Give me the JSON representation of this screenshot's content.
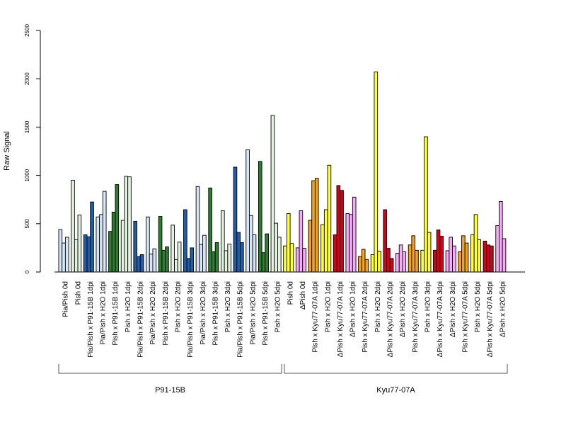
{
  "chart_data": {
    "type": "bar",
    "ylabel": "Raw Signal",
    "ylim": [
      0,
      2500
    ],
    "yticks": [
      "0",
      "500",
      "1000",
      "1500",
      "2000",
      "2500"
    ],
    "grid": false,
    "groups": [
      {
        "label": "P91-15B",
        "first": 0,
        "last": 14
      },
      {
        "label": "Kyu77-07A",
        "first": 15,
        "last": 29
      }
    ],
    "categories": [
      {
        "label": "Pia/Pish 0d",
        "color": "#d6e6f6",
        "values": [
          440,
          300,
          360
        ]
      },
      {
        "label": "Pish 0d",
        "color": "#e3f1df",
        "values": [
          950,
          335,
          590
        ]
      },
      {
        "label": "Pia/Pish x P91-15B 1dpi",
        "color": "#1f5fa8",
        "values": [
          385,
          365,
          725
        ]
      },
      {
        "label": "Pia/Pish x H2O 1dpi",
        "color": "#d6e6f6",
        "values": [
          570,
          595,
          835
        ]
      },
      {
        "label": "Pish x P91-15B 1dpi",
        "color": "#2e7d32",
        "values": [
          420,
          620,
          905
        ]
      },
      {
        "label": "Pish x H2O 1dpi",
        "color": "#e3f1df",
        "values": [
          535,
          990,
          985
        ]
      },
      {
        "label": "Pia/Pish x P91-15B 2dpi",
        "color": "#1f5fa8",
        "values": [
          525,
          160,
          180
        ]
      },
      {
        "label": "Pia/Pish x H2O 2dpi",
        "color": "#d6e6f6",
        "values": [
          570,
          185,
          240
        ]
      },
      {
        "label": "Pish x P91-15B 2dpi",
        "color": "#2e7d32",
        "values": [
          575,
          225,
          260
        ]
      },
      {
        "label": "Pish x H2O 2dpi",
        "color": "#e3f1df",
        "values": [
          485,
          130,
          310
        ]
      },
      {
        "label": "Pia/Pish x P91-15B 3dpi",
        "color": "#1f5fa8",
        "values": [
          645,
          140,
          250
        ]
      },
      {
        "label": "Pia/Pish x H2O 3dpi",
        "color": "#d6e6f6",
        "values": [
          885,
          285,
          380
        ]
      },
      {
        "label": "Pish x P91-15B 3dpi",
        "color": "#2e7d32",
        "values": [
          870,
          210,
          305
        ]
      },
      {
        "label": "Pish x H2O 3dpi",
        "color": "#e3f1df",
        "values": [
          635,
          220,
          290
        ]
      },
      {
        "label": "Pia/Pish x P91-15B 5dpi",
        "color": "#1f5fa8",
        "values": [
          1085,
          410,
          305
        ]
      },
      {
        "label": "Pia/Pish x H2O 5dpi",
        "color": "#d6e6f6",
        "values": [
          1265,
          585,
          385
        ]
      },
      {
        "label": "Pish x P91-15B 5dpi",
        "color": "#2e7d32",
        "values": [
          1145,
          200,
          395
        ]
      },
      {
        "label": "Pish x H2O 5dpi",
        "color": "#e3f1df",
        "values": [
          1620,
          505,
          360
        ]
      },
      {
        "label": "Pish 0d",
        "color": "#ffff33",
        "values": [
          270,
          605,
          295
        ]
      },
      {
        "label": "ΔPish 0d",
        "color": "#f7aaf7",
        "values": [
          250,
          635,
          245
        ]
      },
      {
        "label": "Pish x Kyu77-07A 1dpi",
        "color": "#f5a21b",
        "values": [
          535,
          945,
          970
        ]
      },
      {
        "label": "Pish x H2O 1dpi",
        "color": "#ffff33",
        "values": [
          490,
          645,
          1105
        ]
      },
      {
        "label": "ΔPish x Kyu77-07A 1dpi",
        "color": "#d7001b",
        "values": [
          385,
          895,
          845
        ]
      },
      {
        "label": "ΔPish x H2O 1dpi",
        "color": "#f7aaf7",
        "values": [
          605,
          595,
          775
        ]
      },
      {
        "label": "Pish x Kyu77-07A 2dpi",
        "color": "#f5a21b",
        "values": [
          160,
          235,
          130
        ]
      },
      {
        "label": "Pish x H2O 2dpi",
        "color": "#ffff33",
        "values": [
          180,
          2070,
          215
        ]
      },
      {
        "label": "ΔPish x Kyu77-07A 2dpi",
        "color": "#d7001b",
        "values": [
          645,
          245,
          140
        ]
      },
      {
        "label": "ΔPish x H2O 2dpi",
        "color": "#f7aaf7",
        "values": [
          195,
          280,
          210
        ]
      },
      {
        "label": "Pish x Kyu77-07A 3dpi",
        "color": "#f5a21b",
        "values": [
          280,
          375,
          225
        ]
      },
      {
        "label": "Pish x H2O 3dpi",
        "color": "#ffff33",
        "values": [
          225,
          1400,
          410
        ]
      },
      {
        "label": "ΔPish x Kyu77-07A 3dpi",
        "color": "#d7001b",
        "values": [
          225,
          435,
          370
        ]
      },
      {
        "label": "ΔPish x H2O 3dpi",
        "color": "#f7aaf7",
        "values": [
          220,
          360,
          270
        ]
      },
      {
        "label": "Pish x Kyu77-07A 5dpi",
        "color": "#f5a21b",
        "values": [
          210,
          375,
          300
        ]
      },
      {
        "label": "Pish x H2O 5dpi",
        "color": "#ffff33",
        "values": [
          385,
          595,
          335
        ]
      },
      {
        "label": "ΔPish x Kyu77-07A 5dpi",
        "color": "#d7001b",
        "values": [
          320,
          280,
          270
        ]
      },
      {
        "label": "ΔPish x H2O 5dpi",
        "color": "#f7aaf7",
        "values": [
          480,
          730,
          345
        ]
      }
    ],
    "labeled_categories": [
      "Pia/Pish 0d",
      "Pish 0d",
      "Pia/Pish x P91-15B 1dpi",
      "Pia/Pish x H2O 1dpi",
      "Pish x P91-15B 1dpi",
      "Pish x H2O 1dpi",
      "Pia/Pish x P91-15B 2dpi",
      "Pia/Pish x H2O 2dpi",
      "Pish x P91-15B 2dpi",
      "Pish x H2O 2dpi",
      "Pia/Pish x P91-15B 3dpi",
      "Pia/Pish x H2O 3dpi",
      "Pish x P91-15B 3dpi",
      "Pish x H2O 3dpi",
      "Pia/Pish x P91-15B 5dpi",
      "Pia/Pish x H2O 5dpi",
      "Pish x P91-15B 5dpi",
      "Pish x H2O 5dpi",
      "Pish 0d",
      "ΔPish 0d",
      "Pish x Kyu77-07A 1dpi",
      "Pish x H2O 1dpi",
      "ΔPish x Kyu77-07A 1dpi",
      "ΔPish x H2O 1dpi",
      "Pish x Kyu77-07A 2dpi",
      "Pish x H2O 2dpi",
      "ΔPish x Kyu77-07A 2dpi",
      "ΔPish x H2O 2dpi",
      "Pish x Kyu77-07A 3dpi",
      "Pish x H2O 3dpi",
      "ΔPish x Kyu77-07A 3dpi",
      "ΔPish x H2O 3dpi",
      "Pish x Kyu77-07A 5dpi",
      "Pish x H2O 5dpi",
      "ΔPish x Kyu77-07A 5dpi",
      "ΔPish x H2O 5dpi"
    ]
  }
}
